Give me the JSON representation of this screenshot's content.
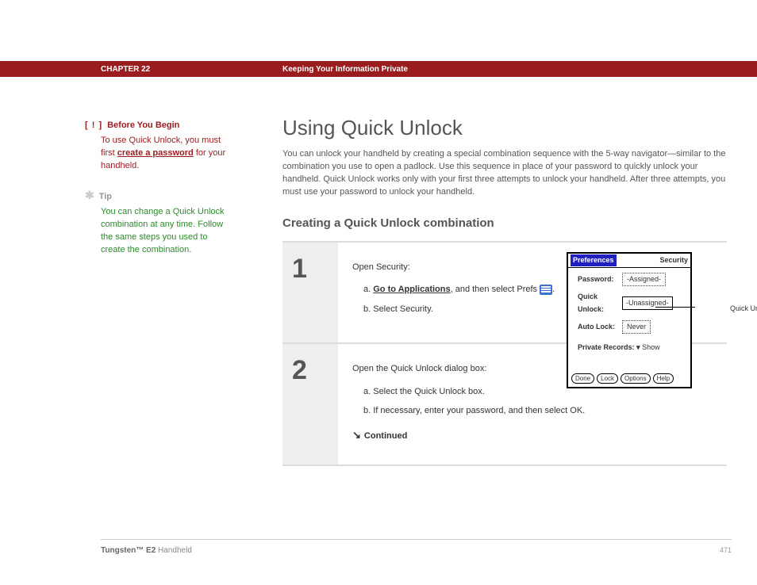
{
  "header": {
    "chapter": "CHAPTER 22",
    "section": "Keeping Your Information Private"
  },
  "sidebar": {
    "before_begin_label": "Before You Begin",
    "exclaim": "[ ! ]",
    "before_begin_pre": "To use Quick Unlock, you must first ",
    "before_begin_link": "create a password",
    "before_begin_post": " for your handheld.",
    "tip_label": "Tip",
    "asterisk": "✱",
    "tip_text": "You can change a Quick Unlock combination at any time. Follow the same steps you used to create the combination."
  },
  "main": {
    "title": "Using Quick Unlock",
    "intro": "You can unlock your handheld by creating a special combination sequence with the 5-way navigator—similar to the combination you use to open a padlock. Use this sequence in place of your password to quickly unlock your handheld. Quick Unlock works only with your first three attempts to unlock your handheld. After three attempts, you must use your password to unlock your handheld.",
    "subheading": "Creating a Quick Unlock combination"
  },
  "steps": {
    "s1": {
      "num": "1",
      "intro": "Open Security:",
      "a_pre": "a.  ",
      "a_link": "Go to Applications",
      "a_post": ", and then select Prefs ",
      "a_tail": ".",
      "b": "b.  Select Security."
    },
    "s2": {
      "num": "2",
      "intro": "Open the Quick Unlock dialog box:",
      "a": "a.  Select the Quick Unlock box.",
      "b": "b.  If necessary, enter your password, and then select OK.",
      "continued": "Continued"
    }
  },
  "screenshot": {
    "title_left": "Preferences",
    "title_right": "Security",
    "password_lbl": "Password:",
    "password_val": "-Assigned-",
    "quick_lbl": "Quick Unlock:",
    "quick_val": "-Unassigned-",
    "auto_lbl": "Auto Lock:",
    "auto_val": "Never",
    "private_lbl": "Private Records: ▾",
    "private_val": "Show",
    "btn_done": "Done",
    "btn_lock": "Lock",
    "btn_options": "Options",
    "btn_help": "Help",
    "callout": "Quick Unlock box"
  },
  "footer": {
    "product_bold": "Tungsten™ E2",
    "product_rest": " Handheld",
    "page": "471"
  }
}
